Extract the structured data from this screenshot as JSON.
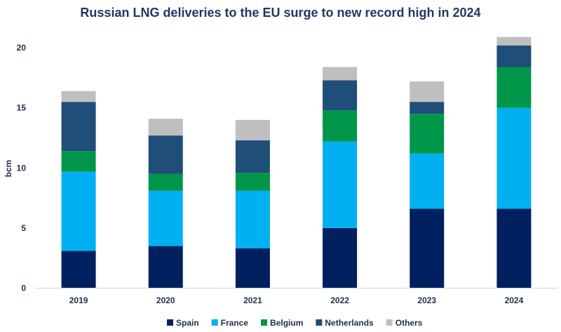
{
  "chart_data": {
    "type": "bar",
    "stacked": true,
    "title": "Russian LNG deliveries to the EU surge to new record high in 2024",
    "xlabel": "",
    "ylabel": "bcm",
    "ylim": [
      0,
      21
    ],
    "yticks": [
      0,
      5,
      10,
      15,
      20
    ],
    "grid": false,
    "legend_position": "bottom",
    "categories": [
      "2019",
      "2020",
      "2021",
      "2022",
      "2023",
      "2024"
    ],
    "series": [
      {
        "name": "Spain",
        "color": "#002060",
        "values": [
          3.1,
          3.5,
          3.3,
          5.0,
          6.6,
          6.6
        ]
      },
      {
        "name": "France",
        "color": "#00b0f0",
        "values": [
          6.6,
          4.6,
          4.8,
          7.2,
          4.6,
          8.4
        ]
      },
      {
        "name": "Belgium",
        "color": "#00964a",
        "values": [
          1.7,
          1.4,
          1.5,
          2.6,
          3.3,
          3.4
        ]
      },
      {
        "name": "Netherlands",
        "color": "#1f4e79",
        "values": [
          4.1,
          3.2,
          2.7,
          2.5,
          1.0,
          1.8
        ]
      },
      {
        "name": "Others",
        "color": "#bfbfbf",
        "values": [
          0.9,
          1.4,
          1.7,
          1.1,
          1.7,
          0.7
        ]
      }
    ]
  }
}
